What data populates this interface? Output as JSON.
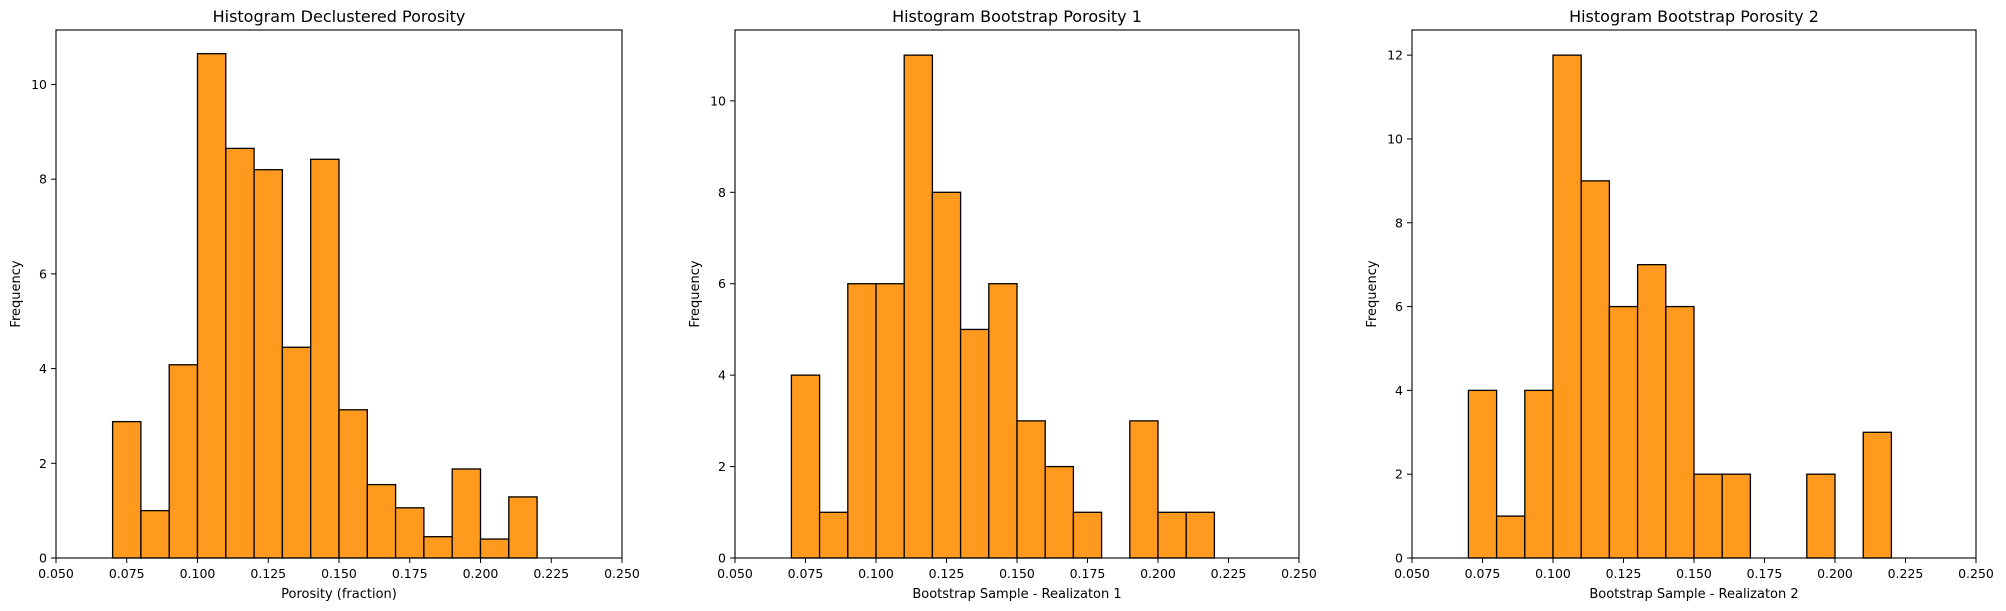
{
  "style": {
    "bar_fill": "#ff9a1e",
    "bar_edge": "#000000",
    "grid": false
  },
  "chart_data": [
    {
      "type": "bar",
      "title": "Histogram Declustered Porosity",
      "xlabel": "Porosity (fraction)",
      "ylabel": "Frequency",
      "xlim": [
        0.05,
        0.25
      ],
      "ylim": [
        0,
        11.15
      ],
      "xticks": [
        "0.050",
        "0.075",
        "0.100",
        "0.125",
        "0.150",
        "0.175",
        "0.200",
        "0.225",
        "0.250"
      ],
      "yticks": [
        "0",
        "2",
        "4",
        "6",
        "8",
        "10"
      ],
      "bin_edges": [
        0.07,
        0.08,
        0.09,
        0.1,
        0.11,
        0.12,
        0.13,
        0.14,
        0.15,
        0.16,
        0.17,
        0.18,
        0.19,
        0.2,
        0.21,
        0.22
      ],
      "values": [
        2.88,
        1.0,
        4.08,
        10.65,
        8.65,
        8.2,
        4.45,
        8.42,
        3.13,
        1.55,
        1.06,
        0.45,
        1.88,
        0.4,
        1.29
      ]
    },
    {
      "type": "bar",
      "title": "Histogram Bootstrap Porosity 1",
      "xlabel": "Bootstrap Sample - Realizaton 1",
      "ylabel": "Frequency",
      "xlim": [
        0.05,
        0.25
      ],
      "ylim": [
        0,
        11.55
      ],
      "xticks": [
        "0.050",
        "0.075",
        "0.100",
        "0.125",
        "0.150",
        "0.175",
        "0.200",
        "0.225",
        "0.250"
      ],
      "yticks": [
        "0",
        "2",
        "4",
        "6",
        "8",
        "10"
      ],
      "bin_edges": [
        0.07,
        0.08,
        0.09,
        0.1,
        0.11,
        0.12,
        0.13,
        0.14,
        0.15,
        0.16,
        0.17,
        0.18,
        0.19,
        0.2,
        0.21,
        0.22
      ],
      "values": [
        4,
        1,
        6,
        6,
        11,
        8,
        5,
        6,
        3,
        2,
        1,
        0,
        3,
        1,
        1
      ]
    },
    {
      "type": "bar",
      "title": "Histogram Bootstrap Porosity 2",
      "xlabel": "Bootstrap Sample - Realizaton 2",
      "ylabel": "Frequency",
      "xlim": [
        0.05,
        0.25
      ],
      "ylim": [
        0,
        12.6
      ],
      "xticks": [
        "0.050",
        "0.075",
        "0.100",
        "0.125",
        "0.150",
        "0.175",
        "0.200",
        "0.225",
        "0.250"
      ],
      "yticks": [
        "0",
        "2",
        "4",
        "6",
        "8",
        "10",
        "12"
      ],
      "bin_edges": [
        0.07,
        0.08,
        0.09,
        0.1,
        0.11,
        0.12,
        0.13,
        0.14,
        0.15,
        0.16,
        0.17,
        0.18,
        0.19,
        0.2,
        0.21,
        0.22
      ],
      "values": [
        4,
        1,
        4,
        12,
        9,
        6,
        7,
        6,
        2,
        2,
        0,
        0,
        2,
        0,
        3
      ]
    }
  ]
}
